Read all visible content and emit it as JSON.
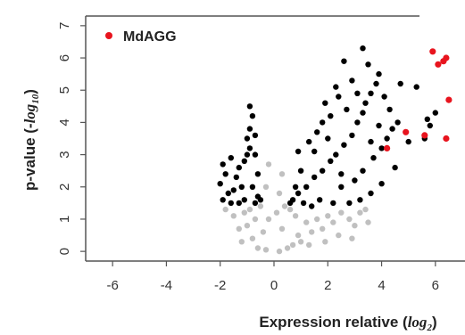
{
  "chart_data": {
    "type": "scatter",
    "title": "",
    "xlabel": "Expression relative (",
    "xlabel_math": "log",
    "xlabel_sub": "2",
    "xlabel_close": ")",
    "ylabel": "p-value (-",
    "ylabel_math": "log",
    "ylabel_sub": "10",
    "ylabel_close": ")",
    "xlim": [
      -7.0,
      7.1
    ],
    "ylim": [
      -0.3,
      7.3
    ],
    "x_ticks": [
      "-6",
      "-4",
      "-2",
      "0",
      "2",
      "4",
      "6"
    ],
    "x_tick_values": [
      -6,
      -4,
      -2,
      0,
      2,
      4,
      6
    ],
    "y_ticks": [
      "0",
      "1",
      "2",
      "3",
      "4",
      "5",
      "6",
      "7"
    ],
    "y_tick_values": [
      0,
      1,
      2,
      3,
      4,
      5,
      6,
      7
    ],
    "legend_position": "top-left",
    "colors": {
      "non_significant": "#c0c0c0",
      "significant": "#000000",
      "highlight": "#e8141e",
      "axis": "#555555"
    },
    "series": [
      {
        "name": "",
        "color": "#c0c0c0",
        "points": [
          [
            -0.6,
            0.1
          ],
          [
            0.5,
            0.1
          ],
          [
            -0.3,
            0.05
          ],
          [
            0.2,
            0.0
          ],
          [
            -0.8,
            0.4
          ],
          [
            0.9,
            0.5
          ],
          [
            -1.0,
            0.8
          ],
          [
            1.2,
            0.9
          ],
          [
            1.4,
            0.6
          ],
          [
            -1.2,
            0.3
          ],
          [
            1.6,
            1.0
          ],
          [
            1.8,
            0.7
          ],
          [
            2.0,
            1.1
          ],
          [
            2.2,
            0.9
          ],
          [
            2.5,
            1.2
          ],
          [
            2.8,
            1.0
          ],
          [
            3.0,
            0.8
          ],
          [
            3.2,
            1.2
          ],
          [
            3.5,
            0.9
          ],
          [
            -1.5,
            1.1
          ],
          [
            -1.8,
            1.3
          ],
          [
            -1.1,
            1.2
          ],
          [
            1.0,
            0.3
          ],
          [
            0.7,
            0.2
          ],
          [
            -0.4,
            0.6
          ],
          [
            0.3,
            0.7
          ],
          [
            -0.2,
            1.0
          ],
          [
            0.1,
            1.2
          ],
          [
            2.4,
            0.5
          ],
          [
            2.9,
            0.4
          ],
          [
            1.3,
            0.2
          ],
          [
            -1.3,
            0.7
          ],
          [
            -0.9,
            1.3
          ],
          [
            0.6,
            1.3
          ],
          [
            3.4,
            1.3
          ],
          [
            1.9,
            0.3
          ],
          [
            -0.7,
            1.0
          ],
          [
            0.8,
            1.1
          ],
          [
            -0.5,
            1.4
          ],
          [
            0.4,
            1.4
          ],
          [
            0.2,
            1.8
          ],
          [
            -0.3,
            2.0
          ],
          [
            0.3,
            2.4
          ],
          [
            -0.2,
            2.7
          ]
        ]
      },
      {
        "name": "",
        "color": "#000000",
        "points": [
          [
            -2.0,
            2.1
          ],
          [
            -1.7,
            1.8
          ],
          [
            -1.8,
            2.4
          ],
          [
            -1.9,
            2.7
          ],
          [
            -1.6,
            2.9
          ],
          [
            -1.5,
            1.9
          ],
          [
            -1.4,
            2.3
          ],
          [
            -1.3,
            2.6
          ],
          [
            -1.2,
            2.0
          ],
          [
            -1.1,
            2.8
          ],
          [
            -1.0,
            3.0
          ],
          [
            -1.0,
            3.5
          ],
          [
            -0.9,
            3.2
          ],
          [
            -0.9,
            3.8
          ],
          [
            -0.8,
            4.2
          ],
          [
            -0.9,
            4.5
          ],
          [
            -0.7,
            3.6
          ],
          [
            -0.7,
            3.0
          ],
          [
            -0.6,
            2.4
          ],
          [
            -0.6,
            1.7
          ],
          [
            -0.7,
            1.5
          ],
          [
            -0.8,
            2.0
          ],
          [
            -0.5,
            1.6
          ],
          [
            -1.1,
            1.6
          ],
          [
            -1.3,
            1.5
          ],
          [
            -1.6,
            1.5
          ],
          [
            -1.9,
            1.6
          ],
          [
            1.2,
            2.0
          ],
          [
            1.5,
            2.3
          ],
          [
            1.8,
            2.5
          ],
          [
            2.1,
            2.8
          ],
          [
            2.3,
            3.0
          ],
          [
            2.6,
            3.3
          ],
          [
            2.9,
            3.6
          ],
          [
            3.1,
            4.0
          ],
          [
            3.3,
            4.3
          ],
          [
            3.4,
            4.6
          ],
          [
            3.6,
            4.9
          ],
          [
            3.8,
            5.2
          ],
          [
            3.9,
            5.5
          ],
          [
            3.5,
            5.8
          ],
          [
            3.3,
            6.3
          ],
          [
            2.6,
            5.9
          ],
          [
            2.9,
            5.3
          ],
          [
            2.4,
            4.8
          ],
          [
            2.1,
            4.2
          ],
          [
            1.8,
            4.0
          ],
          [
            1.6,
            3.7
          ],
          [
            1.3,
            3.4
          ],
          [
            0.9,
            3.1
          ],
          [
            1.0,
            2.5
          ],
          [
            0.8,
            2.0
          ],
          [
            0.7,
            1.6
          ],
          [
            0.6,
            1.5
          ],
          [
            2.5,
            2.0
          ],
          [
            3.0,
            2.2
          ],
          [
            3.3,
            2.5
          ],
          [
            3.7,
            2.9
          ],
          [
            4.0,
            3.2
          ],
          [
            4.2,
            3.5
          ],
          [
            4.4,
            3.8
          ],
          [
            4.6,
            4.0
          ],
          [
            4.3,
            4.4
          ],
          [
            4.7,
            5.2
          ],
          [
            5.3,
            5.1
          ],
          [
            5.6,
            3.5
          ],
          [
            5.0,
            3.4
          ],
          [
            5.7,
            4.1
          ],
          [
            5.8,
            3.9
          ],
          [
            6.0,
            4.3
          ],
          [
            4.5,
            2.6
          ],
          [
            4.0,
            2.1
          ],
          [
            3.6,
            1.8
          ],
          [
            3.2,
            1.6
          ],
          [
            2.8,
            1.5
          ],
          [
            2.2,
            1.5
          ],
          [
            1.7,
            1.6
          ],
          [
            1.4,
            1.4
          ],
          [
            1.1,
            1.5
          ],
          [
            0.9,
            1.8
          ],
          [
            2.0,
            3.5
          ],
          [
            2.7,
            4.4
          ],
          [
            3.1,
            4.9
          ],
          [
            2.3,
            5.1
          ],
          [
            1.9,
            4.6
          ],
          [
            3.6,
            3.4
          ],
          [
            4.1,
            4.8
          ],
          [
            3.9,
            3.9
          ],
          [
            2.5,
            2.4
          ],
          [
            1.5,
            3.1
          ]
        ]
      },
      {
        "name": "MdAGG",
        "color": "#e8141e",
        "points": [
          [
            4.2,
            3.2
          ],
          [
            4.9,
            3.7
          ],
          [
            5.6,
            3.6
          ],
          [
            5.9,
            6.2
          ],
          [
            6.1,
            5.8
          ],
          [
            6.3,
            5.9
          ],
          [
            6.4,
            6.0
          ],
          [
            6.5,
            4.7
          ],
          [
            6.4,
            3.5
          ]
        ]
      }
    ]
  }
}
